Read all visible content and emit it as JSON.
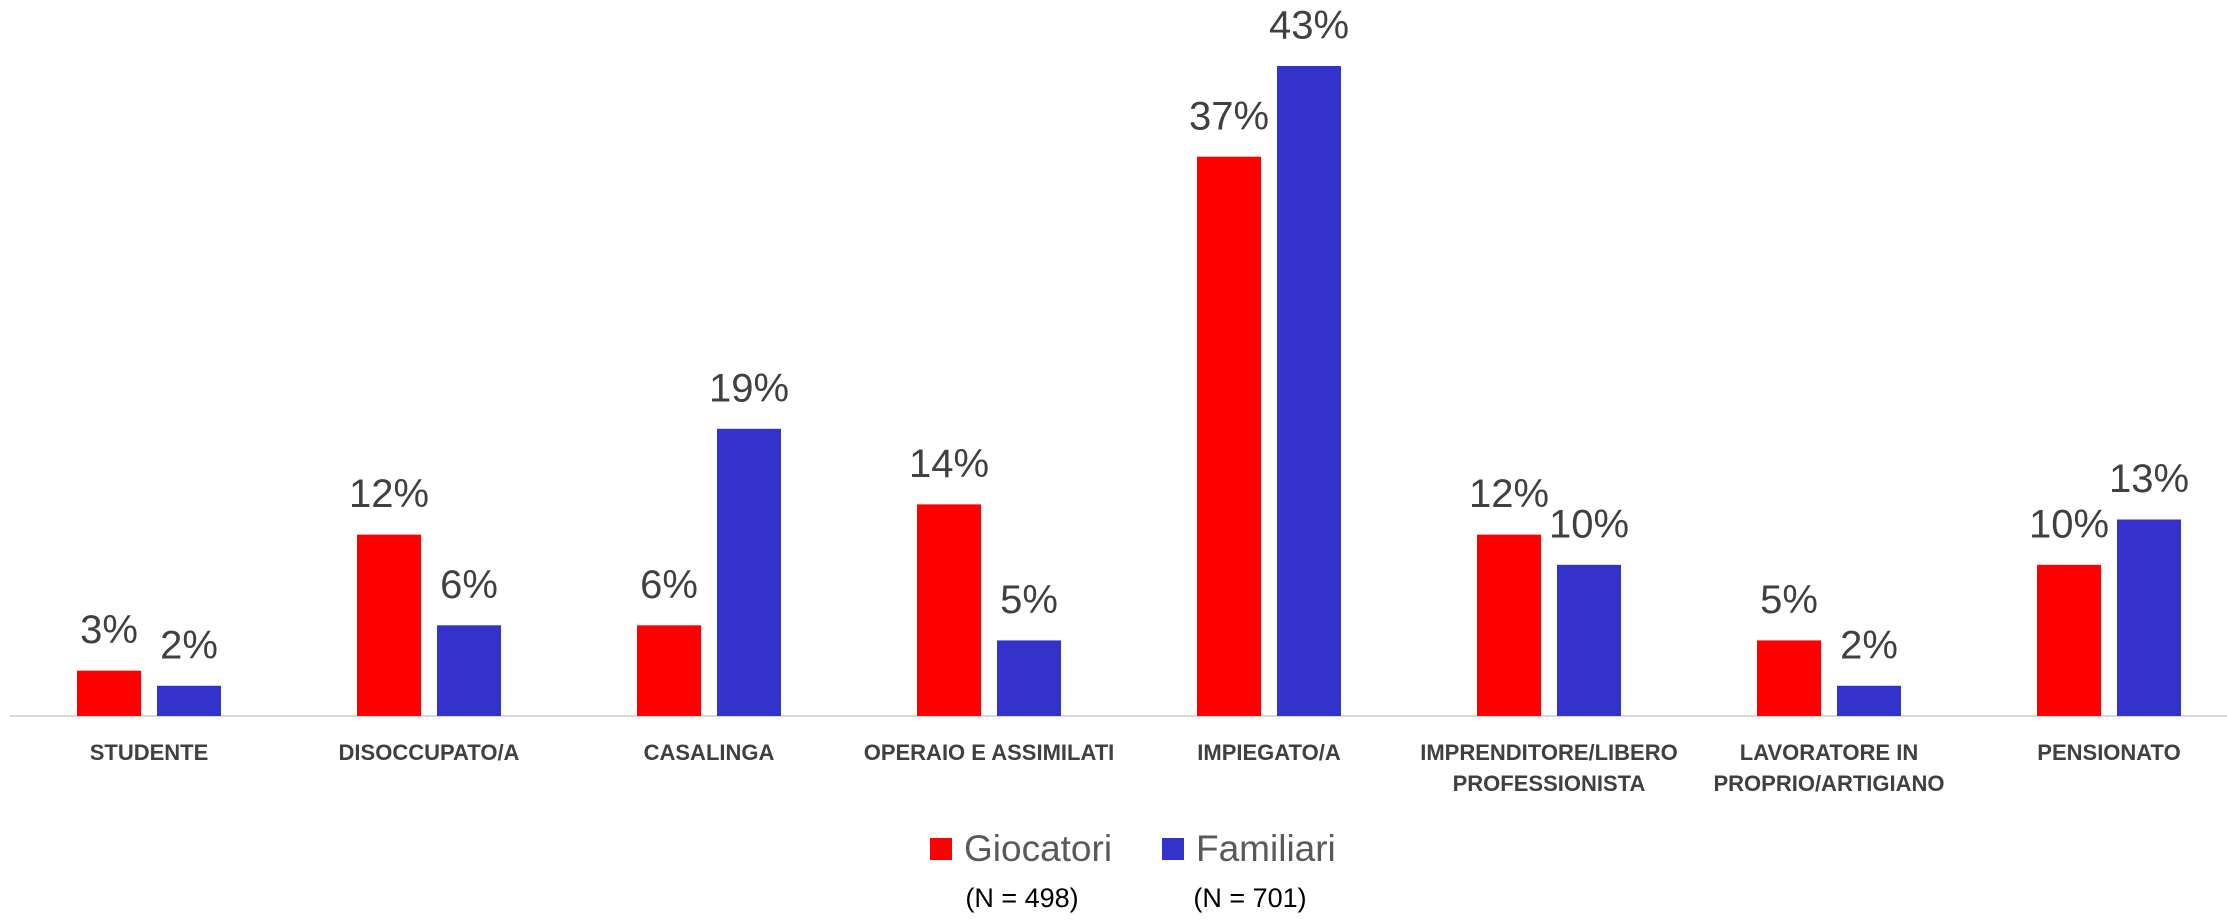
{
  "chart_data": {
    "type": "bar",
    "categories": [
      "STUDENTE",
      "DISOCCUPATO/A",
      "CASALINGA",
      "OPERAIO E ASSIMILATI",
      "IMPIEGATO/A",
      "IMPRENDITORE/LIBERO\nPROFESSIONISTA",
      "LAVORATORE IN\nPROPRIO/ARTIGIANO",
      "PENSIONATO"
    ],
    "series": [
      {
        "name": "Giocatori",
        "note": "(N = 498)",
        "color": "#ff0000",
        "values": [
          3,
          12,
          6,
          14,
          37,
          12,
          5,
          10
        ],
        "value_labels": [
          "3%",
          "12%",
          "6%",
          "14%",
          "37%",
          "12%",
          "5%",
          "10%"
        ]
      },
      {
        "name": "Familiari",
        "note": "(N = 701)",
        "color": "#3333cc",
        "values": [
          2,
          6,
          19,
          5,
          43,
          10,
          2,
          13
        ],
        "value_labels": [
          "2%",
          "6%",
          "19%",
          "5%",
          "43%",
          "10%",
          "2%",
          "13%"
        ]
      }
    ],
    "ylim": [
      0,
      43
    ],
    "legend": "bottom"
  }
}
